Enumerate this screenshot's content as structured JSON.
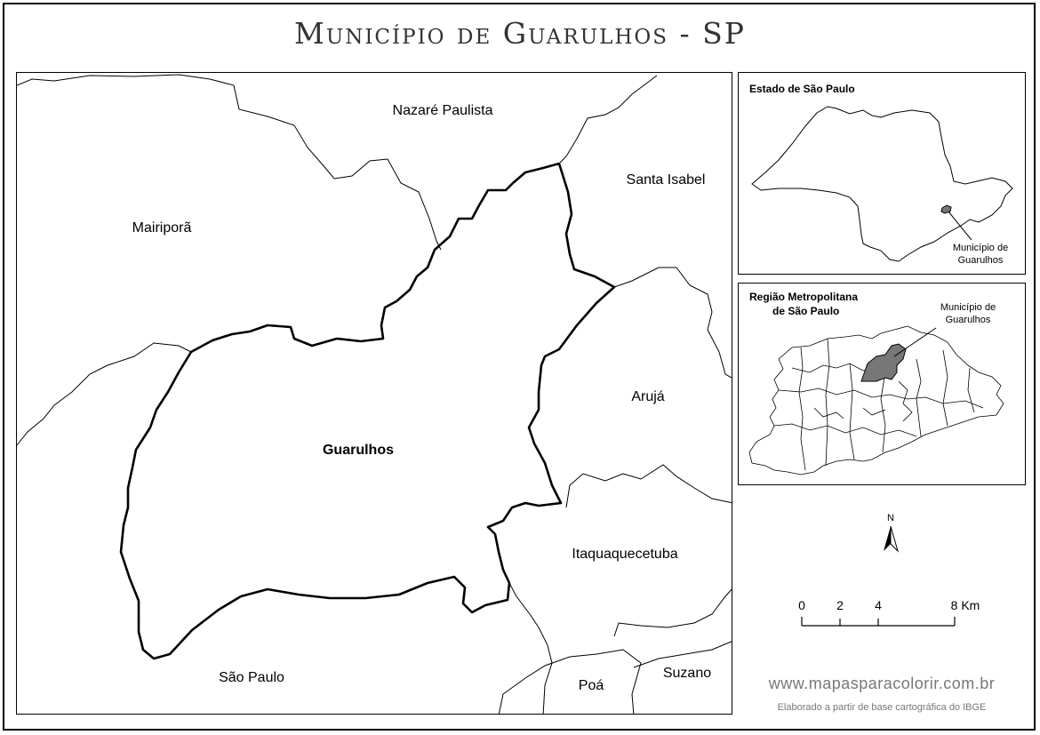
{
  "title": "Município de Guarulhos - SP",
  "map": {
    "municipalities": {
      "nazare_paulista": "Nazaré Paulista",
      "santa_isabel": "Santa Isabel",
      "mairipora": "Mairiporã",
      "guarulhos": "Guarulhos",
      "aruja": "Arujá",
      "itaquaquecetuba": "Itaquaquecetuba",
      "sao_paulo": "São Paulo",
      "poa": "Poá",
      "suzano": "Suzano"
    }
  },
  "inset_state": {
    "title": "Estado de São Paulo",
    "callout_line1": "Município de",
    "callout_line2": "Guarulhos"
  },
  "inset_metro": {
    "title_line1": "Região Metropolitana",
    "title_line2": "de São Paulo",
    "callout_line1": "Município de",
    "callout_line2": "Guarulhos"
  },
  "north_arrow": {
    "label": "N",
    "icon": "north-arrow-icon"
  },
  "scale_bar": {
    "ticks": [
      "0",
      "2",
      "4",
      "8 Km"
    ]
  },
  "footer": {
    "website": "www.mapasparacolorir.com.br",
    "credit": "Elaborado a partir de base cartográfica do IBGE"
  },
  "colors": {
    "highlight_fill": "#777777",
    "line": "#000000",
    "text_muted": "#777777"
  }
}
